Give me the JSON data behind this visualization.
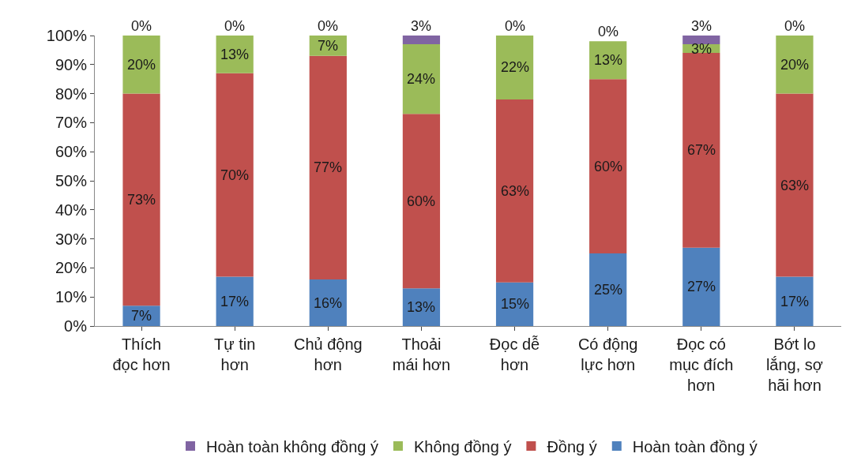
{
  "chart_data": {
    "type": "bar",
    "stacked": true,
    "categories": [
      "Thích đọc hơn",
      "Tự tin hơn",
      "Chủ động hơn",
      "Thoải mái hơn",
      "Đọc dễ hơn",
      "Có động lực hơn",
      "Đọc có mục đích hơn",
      "Bớt lo lắng, sợ hãi hơn"
    ],
    "series": [
      {
        "name": "Hoàn toàn đồng ý",
        "color": "#4f81bd",
        "values": [
          7,
          17,
          16,
          13,
          15,
          25,
          27,
          17
        ],
        "value_labels": [
          "7%",
          "17%",
          "16%",
          "13%",
          "15%",
          "25%",
          "27%",
          "17%"
        ]
      },
      {
        "name": "Đồng ý",
        "color": "#c0504d",
        "values": [
          73,
          70,
          77,
          60,
          63,
          60,
          67,
          63
        ],
        "value_labels": [
          "73%",
          "70%",
          "77%",
          "60%",
          "63%",
          "60%",
          "67%",
          "63%"
        ]
      },
      {
        "name": "Không đồng ý",
        "color": "#9bbb59",
        "values": [
          20,
          13,
          7,
          24,
          22,
          13,
          3,
          20
        ],
        "value_labels": [
          "20%",
          "13%",
          "7%",
          "24%",
          "22%",
          "13%",
          "3%",
          "20%"
        ]
      },
      {
        "name": "Hoàn toàn không đồng ý",
        "color": "#8064a2",
        "values": [
          0,
          0,
          0,
          3,
          0,
          0,
          3,
          0
        ],
        "value_labels": [
          "0%",
          "0%",
          "0%",
          "3%",
          "0%",
          "0%",
          "3%",
          "0%"
        ]
      }
    ],
    "ylim": [
      0,
      100
    ],
    "yticks": [
      {
        "value": 0,
        "label": "0%"
      },
      {
        "value": 10,
        "label": "10%"
      },
      {
        "value": 20,
        "label": "20%"
      },
      {
        "value": 30,
        "label": "30%"
      },
      {
        "value": 40,
        "label": "40%"
      },
      {
        "value": 50,
        "label": "50%"
      },
      {
        "value": 60,
        "label": "60%"
      },
      {
        "value": 70,
        "label": "70%"
      },
      {
        "value": 80,
        "label": "80%"
      },
      {
        "value": 90,
        "label": "90%"
      },
      {
        "value": 100,
        "label": "100%"
      }
    ],
    "legend": "bottom"
  }
}
